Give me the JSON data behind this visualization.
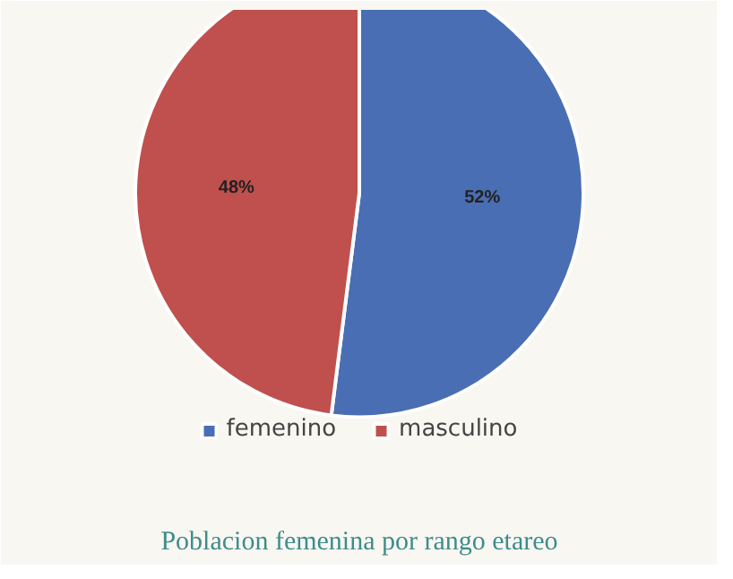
{
  "chart_data": {
    "type": "pie",
    "title": "Poblacion femenina por rango etareo",
    "categories": [
      "femenino",
      "masculino"
    ],
    "values": [
      52,
      48
    ],
    "colors": [
      "#4a6eb3",
      "#c0504d"
    ],
    "value_labels": [
      "52%",
      "48%"
    ],
    "legend": "bottom"
  }
}
